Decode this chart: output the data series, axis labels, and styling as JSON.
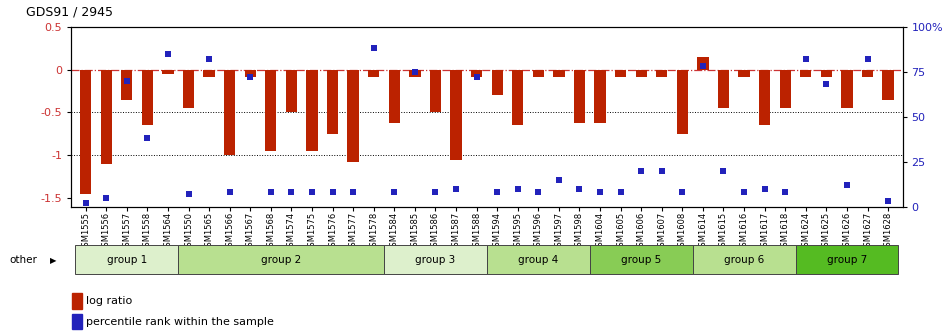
{
  "title": "GDS91 / 2945",
  "samples": [
    "GSM1555",
    "GSM1556",
    "GSM1557",
    "GSM1558",
    "GSM1564",
    "GSM1550",
    "GSM1565",
    "GSM1566",
    "GSM1567",
    "GSM1568",
    "GSM1574",
    "GSM1575",
    "GSM1576",
    "GSM1577",
    "GSM1578",
    "GSM1584",
    "GSM1585",
    "GSM1586",
    "GSM1587",
    "GSM1588",
    "GSM1594",
    "GSM1595",
    "GSM1596",
    "GSM1597",
    "GSM1598",
    "GSM1604",
    "GSM1605",
    "GSM1606",
    "GSM1607",
    "GSM1608",
    "GSM1614",
    "GSM1615",
    "GSM1616",
    "GSM1617",
    "GSM1618",
    "GSM1624",
    "GSM1625",
    "GSM1626",
    "GSM1627",
    "GSM1628"
  ],
  "log_ratio": [
    -1.45,
    -1.1,
    -0.35,
    -0.65,
    -0.05,
    -0.45,
    -0.08,
    -1.0,
    -0.08,
    -0.95,
    -0.5,
    -0.95,
    -0.75,
    -1.08,
    -0.08,
    -0.62,
    -0.08,
    -0.5,
    -1.05,
    -0.08,
    -0.3,
    -0.65,
    -0.08,
    -0.08,
    -0.62,
    -0.62,
    -0.08,
    -0.08,
    -0.08,
    -0.75,
    0.15,
    -0.45,
    -0.08,
    -0.65,
    -0.45,
    -0.08,
    -0.08,
    -0.45,
    -0.08,
    -0.35
  ],
  "percentile_rank": [
    2,
    5,
    70,
    38,
    85,
    7,
    82,
    8,
    72,
    8,
    8,
    8,
    8,
    8,
    88,
    8,
    75,
    8,
    10,
    72,
    8,
    10,
    8,
    15,
    10,
    8,
    8,
    20,
    20,
    8,
    78,
    20,
    8,
    10,
    8,
    82,
    68,
    12,
    82,
    3
  ],
  "groups": [
    {
      "label": "group 1",
      "start": 0,
      "end": 5,
      "color": "#ddf0cc"
    },
    {
      "label": "group 2",
      "start": 5,
      "end": 15,
      "color": "#b8e090"
    },
    {
      "label": "group 3",
      "start": 15,
      "end": 20,
      "color": "#ddf0cc"
    },
    {
      "label": "group 4",
      "start": 20,
      "end": 25,
      "color": "#b8e090"
    },
    {
      "label": "group 5",
      "start": 25,
      "end": 30,
      "color": "#88cc55"
    },
    {
      "label": "group 6",
      "start": 30,
      "end": 35,
      "color": "#b8e090"
    },
    {
      "label": "group 7",
      "start": 35,
      "end": 40,
      "color": "#55bb22"
    }
  ],
  "bar_color": "#bb2200",
  "dot_color": "#2222bb",
  "ylim_left": [
    -1.6,
    0.5
  ],
  "ylim_right": [
    0,
    100
  ],
  "yticks_left": [
    0.5,
    0.0,
    -0.5,
    -1.0,
    -1.5
  ],
  "ytick_left_labels": [
    "0.5",
    "0",
    "-0.5",
    "-1",
    "-1.5"
  ],
  "yticks_right": [
    100,
    75,
    50,
    25,
    0
  ],
  "ytick_right_labels": [
    "100%",
    "75",
    "50",
    "25",
    "0"
  ],
  "background_color": "#ffffff"
}
